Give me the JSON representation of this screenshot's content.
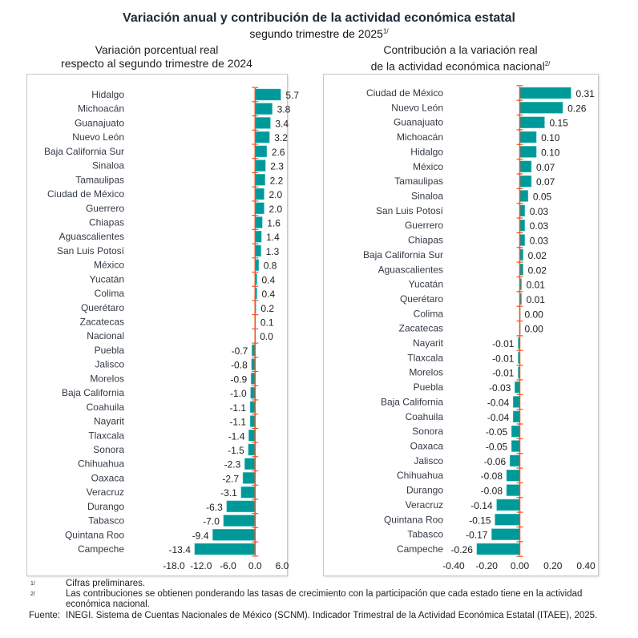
{
  "title": "Variación anual y contribución de la actividad económica estatal",
  "subtitle": "segundo trimestre de 2025",
  "subtitle_note": "1/",
  "colors": {
    "bar": "#009999",
    "axis": "#f4511e",
    "text": "#333a45"
  },
  "chart_data": [
    {
      "type": "bar",
      "orientation": "horizontal",
      "title_line1": "Variación porcentual real",
      "title_line2": "respecto al segundo trimestre de 2024",
      "categories": [
        "Hidalgo",
        "Michoacán",
        "Guanajuato",
        "Nuevo León",
        "Baja California Sur",
        "Sinaloa",
        "Tamaulipas",
        "Ciudad de México",
        "Guerrero",
        "Chiapas",
        "Aguascalientes",
        "San Luis Potosí",
        "México",
        "Yucatán",
        "Colima",
        "Querétaro",
        "Zacatecas",
        "Nacional",
        "Puebla",
        "Jalisco",
        "Morelos",
        "Baja California",
        "Coahuila",
        "Nayarit",
        "Tlaxcala",
        "Sonora",
        "Chihuahua",
        "Oaxaca",
        "Veracruz",
        "Durango",
        "Tabasco",
        "Quintana Roo",
        "Campeche"
      ],
      "values": [
        5.7,
        3.8,
        3.4,
        3.2,
        2.6,
        2.3,
        2.2,
        2.0,
        2.0,
        1.6,
        1.4,
        1.3,
        0.8,
        0.4,
        0.4,
        0.2,
        0.1,
        0.0,
        -0.7,
        -0.8,
        -0.9,
        -1.0,
        -1.1,
        -1.1,
        -1.4,
        -1.5,
        -2.3,
        -2.7,
        -3.1,
        -6.3,
        -7.0,
        -9.4,
        -13.4
      ],
      "labels": [
        "5.7",
        "3.8",
        "3.4",
        "3.2",
        "2.6",
        "2.3",
        "2.2",
        "2.0",
        "2.0",
        "1.6",
        "1.4",
        "1.3",
        "0.8",
        "0.4",
        "0.4",
        "0.2",
        "0.1",
        "0.0",
        "-0.7",
        "-0.8",
        "-0.9",
        "-1.0",
        "-1.1",
        "-1.1",
        "-1.4",
        "-1.5",
        "-2.3",
        "-2.7",
        "-3.1",
        "-6.3",
        "-7.0",
        "-9.4",
        "-13.4"
      ],
      "xlim": [
        -18,
        6
      ],
      "xticks": [
        "-18.0",
        "-12.0",
        "-6.0",
        "0.0",
        "6.0"
      ],
      "xtick_values": [
        -18,
        -12,
        -6,
        0,
        6
      ],
      "grid": false
    },
    {
      "type": "bar",
      "orientation": "horizontal",
      "title_line1": "Contribución a la variación real",
      "title_line2": "de la actividad económica nacional",
      "title_note": "2/",
      "categories": [
        "Ciudad de México",
        "Nuevo León",
        "Guanajuato",
        "Michoacán",
        "Hidalgo",
        "México",
        "Tamaulipas",
        "Sinaloa",
        "San Luis Potosí",
        "Guerrero",
        "Chiapas",
        "Baja California Sur",
        "Aguascalientes",
        "Yucatán",
        "Querétaro",
        "Colima",
        "Zacatecas",
        "Nayarit",
        "Tlaxcala",
        "Morelos",
        "Puebla",
        "Baja California",
        "Coahuila",
        "Sonora",
        "Oaxaca",
        "Jalisco",
        "Chihuahua",
        "Durango",
        "Veracruz",
        "Quintana Roo",
        "Tabasco",
        "Campeche"
      ],
      "values": [
        0.31,
        0.26,
        0.15,
        0.1,
        0.1,
        0.07,
        0.07,
        0.05,
        0.03,
        0.03,
        0.03,
        0.02,
        0.02,
        0.01,
        0.01,
        0.0,
        0.0,
        -0.01,
        -0.01,
        -0.01,
        -0.03,
        -0.04,
        -0.04,
        -0.05,
        -0.05,
        -0.06,
        -0.08,
        -0.08,
        -0.14,
        -0.15,
        -0.17,
        -0.26
      ],
      "labels": [
        "0.31",
        "0.26",
        "0.15",
        "0.10",
        "0.10",
        "0.07",
        "0.07",
        "0.05",
        "0.03",
        "0.03",
        "0.03",
        "0.02",
        "0.02",
        "0.01",
        "0.01",
        "0.00",
        "0.00",
        "-0.01",
        "-0.01",
        "-0.01",
        "-0.03",
        "-0.04",
        "-0.04",
        "-0.05",
        "-0.05",
        "-0.06",
        "-0.08",
        "-0.08",
        "-0.14",
        "-0.15",
        "-0.17",
        "-0.26"
      ],
      "xlim": [
        -0.4,
        0.4
      ],
      "xticks": [
        "-0.40",
        "-0.20",
        "0.00",
        "0.20",
        "0.40"
      ],
      "xtick_values": [
        -0.4,
        -0.2,
        0,
        0.2,
        0.4
      ],
      "grid": false
    }
  ],
  "notes": {
    "n1_mark": "1/",
    "n1_text": "Cifras preliminares.",
    "n2_mark": "2/",
    "n2_text": "Las contribuciones se obtienen ponderando las tasas de crecimiento con la participación que cada estado tiene en la actividad económica nacional.",
    "source_label": "Fuente:",
    "source_text": "INEGI. Sistema de Cuentas Nacionales de México (SCNM). Indicador Trimestral de la Actividad Económica Estatal (ITAEE), 2025."
  }
}
